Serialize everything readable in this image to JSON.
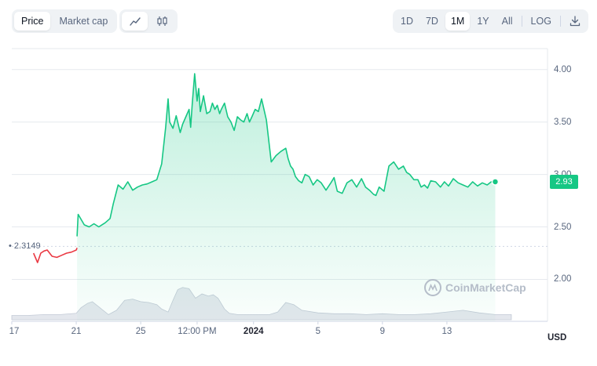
{
  "controls": {
    "metric_tabs": [
      {
        "label": "Price",
        "active": true
      },
      {
        "label": "Market cap",
        "active": false
      }
    ],
    "chart_type_icons": [
      {
        "icon": "line-chart-icon",
        "active": true
      },
      {
        "icon": "candlestick-icon",
        "active": false
      }
    ],
    "ranges": [
      {
        "label": "1D",
        "active": false
      },
      {
        "label": "7D",
        "active": false
      },
      {
        "label": "1M",
        "active": true
      },
      {
        "label": "1Y",
        "active": false
      },
      {
        "label": "All",
        "active": false
      }
    ],
    "log_label": "LOG",
    "download_icon": "download-icon"
  },
  "currency": "USD",
  "watermark": "CoinMarketCap",
  "colors": {
    "up": "#16c784",
    "down": "#ea3943",
    "grid": "#e6e9ee",
    "volume": "#d8dde6"
  },
  "chart_data": {
    "type": "area",
    "open_price": 2.3149,
    "open_label": "2.3149",
    "current_price": 2.93,
    "current_label": "2.93",
    "ylim": [
      1.6,
      4.2
    ],
    "y_ticks": [
      {
        "v": 4.0,
        "label": "4.00"
      },
      {
        "v": 3.5,
        "label": "3.50"
      },
      {
        "v": 3.0,
        "label": "3.00"
      },
      {
        "v": 2.5,
        "label": "2.50"
      },
      {
        "v": 2.0,
        "label": "2.00"
      }
    ],
    "xlim": [
      0,
      33
    ],
    "x_ticks": [
      {
        "x": 0,
        "label": "17",
        "bold": false
      },
      {
        "x": 4,
        "label": "21",
        "bold": false
      },
      {
        "x": 8,
        "label": "25",
        "bold": false
      },
      {
        "x": 11.5,
        "label": "12:00 PM",
        "bold": false
      },
      {
        "x": 15,
        "label": "2024",
        "bold": true
      },
      {
        "x": 19,
        "label": "5",
        "bold": false
      },
      {
        "x": 23,
        "label": "9",
        "bold": false
      },
      {
        "x": 27,
        "label": "13",
        "bold": false
      }
    ],
    "series": [
      {
        "segment": "below-open",
        "x": [
          1.35,
          1.6,
          1.8,
          2.0,
          2.2,
          2.5,
          2.8,
          3.1,
          3.4,
          3.7,
          4.0,
          4.05
        ],
        "y": [
          2.25,
          2.16,
          2.25,
          2.27,
          2.28,
          2.22,
          2.21,
          2.23,
          2.25,
          2.26,
          2.28,
          2.3
        ]
      },
      {
        "segment": "above-open",
        "x": [
          4.05,
          4.12,
          4.5,
          4.8,
          5.1,
          5.4,
          5.8,
          6.1,
          6.3,
          6.6,
          6.9,
          7.2,
          7.5,
          7.8,
          8.1,
          8.4,
          8.7,
          9.0,
          9.3,
          9.55,
          9.7,
          9.8,
          10.0,
          10.2,
          10.45,
          10.6,
          10.8,
          11.0,
          11.1,
          11.2,
          11.35,
          11.5,
          11.6,
          11.7,
          11.9,
          12.1,
          12.3,
          12.45,
          12.6,
          12.75,
          12.9,
          13.0,
          13.2,
          13.4,
          13.6,
          13.8,
          14.0,
          14.2,
          14.4,
          14.6,
          14.75,
          14.9,
          15.1,
          15.3,
          15.5,
          15.8,
          16.1,
          16.4,
          16.7,
          17.0,
          17.15,
          17.3,
          17.45,
          17.6,
          17.8,
          18.0,
          18.2,
          18.45,
          18.7,
          18.95,
          19.2,
          19.5,
          19.8,
          20.0,
          20.2,
          20.5,
          20.8,
          21.1,
          21.4,
          21.7,
          21.95,
          22.2,
          22.45,
          22.6,
          22.8,
          23.1,
          23.4,
          23.7,
          24.0,
          24.3,
          24.5,
          24.7,
          24.95,
          25.2,
          25.4,
          25.6,
          25.8,
          26.0,
          26.3,
          26.6,
          26.85,
          27.1,
          27.4,
          27.7,
          28.0,
          28.3,
          28.6,
          28.9,
          29.2,
          29.5,
          29.75,
          30.0
        ],
        "y": [
          2.41,
          2.62,
          2.52,
          2.5,
          2.53,
          2.5,
          2.54,
          2.58,
          2.72,
          2.9,
          2.86,
          2.93,
          2.85,
          2.88,
          2.9,
          2.91,
          2.93,
          2.95,
          3.1,
          3.45,
          3.72,
          3.5,
          3.44,
          3.56,
          3.4,
          3.48,
          3.55,
          3.62,
          3.45,
          3.68,
          3.96,
          3.7,
          3.82,
          3.6,
          3.75,
          3.58,
          3.6,
          3.68,
          3.62,
          3.66,
          3.58,
          3.62,
          3.68,
          3.55,
          3.5,
          3.42,
          3.55,
          3.52,
          3.5,
          3.58,
          3.5,
          3.55,
          3.62,
          3.6,
          3.72,
          3.52,
          3.12,
          3.18,
          3.22,
          3.25,
          3.15,
          3.08,
          3.05,
          2.98,
          2.94,
          2.92,
          3.0,
          2.98,
          2.9,
          2.95,
          2.92,
          2.85,
          2.92,
          2.97,
          2.84,
          2.82,
          2.92,
          2.95,
          2.88,
          2.96,
          2.88,
          2.85,
          2.81,
          2.8,
          2.88,
          2.84,
          3.08,
          3.12,
          3.05,
          3.08,
          3.02,
          3.0,
          2.95,
          2.95,
          2.88,
          2.9,
          2.87,
          2.94,
          2.93,
          2.88,
          2.93,
          2.89,
          2.96,
          2.92,
          2.9,
          2.88,
          2.93,
          2.89,
          2.92,
          2.9,
          2.93,
          2.93
        ]
      }
    ],
    "volume": {
      "x": [
        0,
        1,
        2,
        3,
        4,
        4.3,
        4.7,
        5,
        6,
        6.5,
        7,
        7.5,
        8,
        8.5,
        9,
        9.3,
        9.7,
        10,
        10.3,
        10.6,
        11,
        11.4,
        11.8,
        12.2,
        12.5,
        12.8,
        13.2,
        13.5,
        14,
        15,
        16,
        16.5,
        17,
        17.5,
        18,
        19,
        20,
        21,
        22,
        23,
        24,
        25,
        26,
        27,
        28,
        29,
        30,
        31
      ],
      "y": [
        0.1,
        0.1,
        0.12,
        0.12,
        0.15,
        0.28,
        0.38,
        0.42,
        0.12,
        0.22,
        0.45,
        0.48,
        0.42,
        0.4,
        0.35,
        0.25,
        0.18,
        0.45,
        0.7,
        0.75,
        0.72,
        0.5,
        0.6,
        0.55,
        0.58,
        0.5,
        0.25,
        0.15,
        0.12,
        0.12,
        0.12,
        0.18,
        0.4,
        0.35,
        0.22,
        0.16,
        0.14,
        0.14,
        0.12,
        0.14,
        0.12,
        0.12,
        0.14,
        0.18,
        0.22,
        0.16,
        0.12,
        0.12
      ]
    }
  }
}
